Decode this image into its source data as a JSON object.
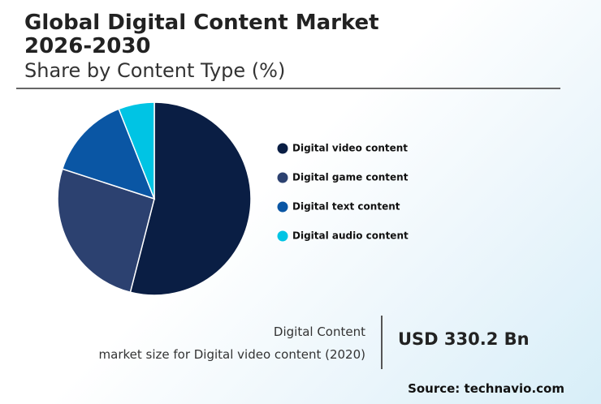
{
  "chart_data": {
    "type": "pie",
    "title": "Global Digital Content Market 2026-2030",
    "subtitle": "Share by Content Type (%)",
    "categories": [
      "Digital video content",
      "Digital game content",
      "Digital text content",
      "Digital audio content"
    ],
    "values": [
      54,
      26,
      14,
      6
    ],
    "colors": [
      "#0a1e44",
      "#2c4170",
      "#0a56a4",
      "#00c4e4"
    ],
    "legend": "right",
    "annotation_label": "Digital Content",
    "annotation_sublabel": "market size for Digital video content (2020)",
    "annotation_value": "USD 330.2 Bn",
    "source": "Source: technavio.com"
  }
}
